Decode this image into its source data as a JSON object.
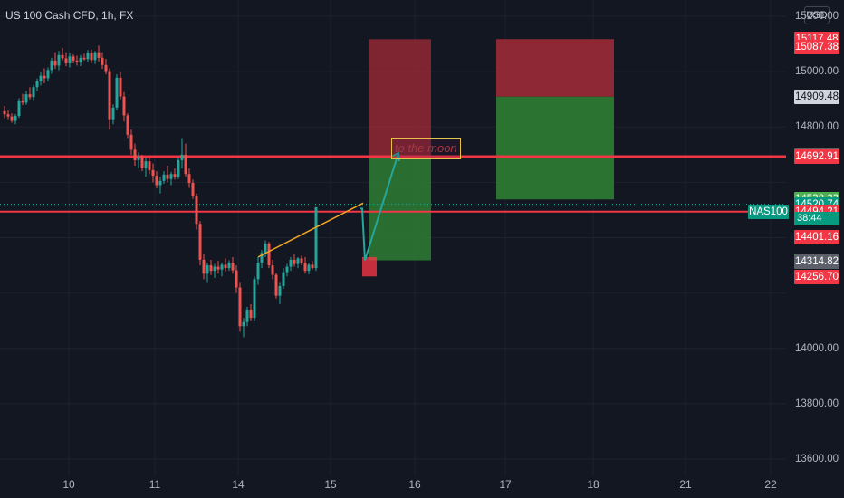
{
  "header": {
    "title": "US 100 Cash CFD, 1h, FX"
  },
  "currency_button": "USD",
  "symbol_tag": "NAS100",
  "note_text": "to the moon",
  "y_axis": {
    "ticks": [
      "15200.00",
      "15000.00",
      "14800.00",
      "14000.00",
      "13800.00",
      "13600.00"
    ],
    "tick_values": [
      15200,
      15000,
      14800,
      14000,
      13800,
      13600
    ],
    "price_tags": [
      {
        "label": "15117.48",
        "value": 15117.48,
        "style": "red"
      },
      {
        "label": "15087.38",
        "value": 15087.38,
        "style": "red"
      },
      {
        "label": "14909.48",
        "value": 14909.48,
        "style": "light"
      },
      {
        "label": "14696.78",
        "value": 14696.78,
        "style": "grey"
      },
      {
        "label": "14692.91",
        "value": 14692.91,
        "style": "red"
      },
      {
        "label": "14538.22",
        "value": 14538.22,
        "style": "green"
      },
      {
        "label": "14520.74",
        "value": 14520.74,
        "style": "teal"
      },
      {
        "label": "14494.21",
        "value": 14494.21,
        "style": "red"
      },
      {
        "label": "14401.16",
        "value": 14401.16,
        "style": "red"
      },
      {
        "label": "14317.79",
        "value": 14317.79,
        "style": "green"
      },
      {
        "label": "14314.82",
        "value": 14314.82,
        "style": "grey"
      },
      {
        "label": "14256.70",
        "value": 14256.7,
        "style": "red"
      }
    ],
    "countdown": "38:44"
  },
  "x_axis": {
    "ticks": [
      "10",
      "11",
      "14",
      "15",
      "16",
      "17",
      "18",
      "21",
      "22"
    ]
  },
  "colors": {
    "up": "#26a69a",
    "down": "#ef5350",
    "level": "#f23645",
    "trend": "#f5a623",
    "arrow": "#26a69a",
    "bg": "#131722"
  },
  "horizontal_levels": [
    14692.91,
    14494.21
  ],
  "current_price": 14520.74,
  "chart_data": {
    "type": "candlestick",
    "title": "US 100 Cash CFD, 1h, FX",
    "ylim": [
      13570,
      15240
    ],
    "candles": [
      [
        14857,
        14876,
        14832,
        14846
      ],
      [
        14846,
        14860,
        14829,
        14838
      ],
      [
        14838,
        14849,
        14815,
        14822
      ],
      [
        14822,
        14847,
        14810,
        14840
      ],
      [
        14840,
        14904,
        14833,
        14896
      ],
      [
        14896,
        14920,
        14879,
        14888
      ],
      [
        14888,
        14930,
        14880,
        14918
      ],
      [
        14918,
        14944,
        14900,
        14908
      ],
      [
        14908,
        14952,
        14897,
        14944
      ],
      [
        14944,
        14975,
        14930,
        14965
      ],
      [
        14965,
        14998,
        14950,
        14985
      ],
      [
        14985,
        15012,
        14958,
        14976
      ],
      [
        14976,
        15015,
        14965,
        15006
      ],
      [
        15006,
        15050,
        14992,
        15040
      ],
      [
        15040,
        15070,
        15010,
        15022
      ],
      [
        15022,
        15075,
        15005,
        15060
      ],
      [
        15060,
        15085,
        15040,
        15048
      ],
      [
        15048,
        15070,
        15020,
        15030
      ],
      [
        15030,
        15068,
        15015,
        15055
      ],
      [
        15055,
        15062,
        15030,
        15040
      ],
      [
        15040,
        15058,
        15022,
        15034
      ],
      [
        15034,
        15060,
        15020,
        15050
      ],
      [
        15050,
        15065,
        15040,
        15045
      ],
      [
        15045,
        15078,
        15035,
        15068
      ],
      [
        15068,
        15080,
        15030,
        15042
      ],
      [
        15042,
        15075,
        15028,
        15070
      ],
      [
        15070,
        15094,
        15036,
        15050
      ],
      [
        15050,
        15070,
        15010,
        15024
      ],
      [
        15024,
        15046,
        14990,
        15002
      ],
      [
        15002,
        15012,
        14790,
        14828
      ],
      [
        14828,
        14882,
        14810,
        14870
      ],
      [
        14870,
        14990,
        14860,
        14978
      ],
      [
        14978,
        14998,
        14900,
        14910
      ],
      [
        14910,
        14926,
        14820,
        14842
      ],
      [
        14842,
        14850,
        14760,
        14772
      ],
      [
        14772,
        14790,
        14700,
        14718
      ],
      [
        14718,
        14740,
        14660,
        14680
      ],
      [
        14680,
        14708,
        14650,
        14692
      ],
      [
        14692,
        14700,
        14640,
        14652
      ],
      [
        14652,
        14690,
        14620,
        14676
      ],
      [
        14676,
        14690,
        14630,
        14644
      ],
      [
        14644,
        14668,
        14600,
        14624
      ],
      [
        14624,
        14640,
        14578,
        14590
      ],
      [
        14590,
        14620,
        14560,
        14605
      ],
      [
        14605,
        14640,
        14595,
        14628
      ],
      [
        14628,
        14660,
        14600,
        14612
      ],
      [
        14612,
        14638,
        14590,
        14630
      ],
      [
        14630,
        14650,
        14610,
        14620
      ],
      [
        14620,
        14690,
        14612,
        14680
      ],
      [
        14680,
        14760,
        14650,
        14700
      ],
      [
        14700,
        14740,
        14620,
        14630
      ],
      [
        14630,
        14650,
        14580,
        14598
      ],
      [
        14598,
        14610,
        14540,
        14552
      ],
      [
        14552,
        14560,
        14430,
        14450
      ],
      [
        14450,
        14460,
        14300,
        14320
      ],
      [
        14320,
        14340,
        14250,
        14270
      ],
      [
        14270,
        14310,
        14240,
        14300
      ],
      [
        14300,
        14320,
        14265,
        14280
      ],
      [
        14280,
        14305,
        14255,
        14295
      ],
      [
        14295,
        14316,
        14270,
        14285
      ],
      [
        14285,
        14310,
        14260,
        14302
      ],
      [
        14302,
        14325,
        14278,
        14290
      ],
      [
        14290,
        14318,
        14280,
        14310
      ],
      [
        14310,
        14330,
        14270,
        14282
      ],
      [
        14282,
        14300,
        14200,
        14220
      ],
      [
        14220,
        14240,
        14060,
        14080
      ],
      [
        14080,
        14110,
        14040,
        14095
      ],
      [
        14095,
        14150,
        14080,
        14140
      ],
      [
        14140,
        14160,
        14100,
        14110
      ],
      [
        14110,
        14260,
        14100,
        14250
      ],
      [
        14250,
        14330,
        14230,
        14310
      ],
      [
        14310,
        14355,
        14290,
        14345
      ],
      [
        14345,
        14390,
        14330,
        14378
      ],
      [
        14378,
        14385,
        14290,
        14300
      ],
      [
        14300,
        14320,
        14250,
        14266
      ],
      [
        14266,
        14272,
        14180,
        14190
      ],
      [
        14190,
        14240,
        14160,
        14225
      ],
      [
        14225,
        14290,
        14215,
        14275
      ],
      [
        14275,
        14305,
        14260,
        14295
      ],
      [
        14295,
        14330,
        14280,
        14320
      ],
      [
        14320,
        14340,
        14295,
        14305
      ],
      [
        14305,
        14330,
        14290,
        14325
      ],
      [
        14325,
        14335,
        14300,
        14310
      ],
      [
        14310,
        14330,
        14270,
        14280
      ],
      [
        14280,
        14310,
        14268,
        14302
      ],
      [
        14302,
        14315,
        14285,
        14290
      ],
      [
        14290,
        14505,
        14280,
        14510
      ]
    ],
    "overlays": {
      "trend_line": {
        "from": {
          "index": 67,
          "price": 14330
        },
        "to": {
          "index": 99,
          "price": 14525
        },
        "color": "#f5a623"
      },
      "arrow": {
        "from": {
          "index": 99,
          "price": 14318
        },
        "to": {
          "index": 106,
          "price": 14706
        },
        "color": "#26a69a"
      },
      "position_long_1": {
        "x_start": "15 late",
        "x_end": "16 mid",
        "stop": 14318,
        "entry": 14318,
        "target": 14660,
        "risk_top": 15120,
        "color_profit": "#4caf50",
        "color_loss": "#f23645"
      },
      "position_box_2": {
        "x_start": "17",
        "x_end": "18",
        "top": 15117.48,
        "mid": 14909.48,
        "bottom": 14538.22
      }
    },
    "x_ticks": [
      "10",
      "11",
      "14",
      "15",
      "16",
      "17",
      "18",
      "21",
      "22"
    ],
    "y_ticks": [
      15200,
      15000,
      14800,
      14000,
      13800,
      13600
    ]
  }
}
